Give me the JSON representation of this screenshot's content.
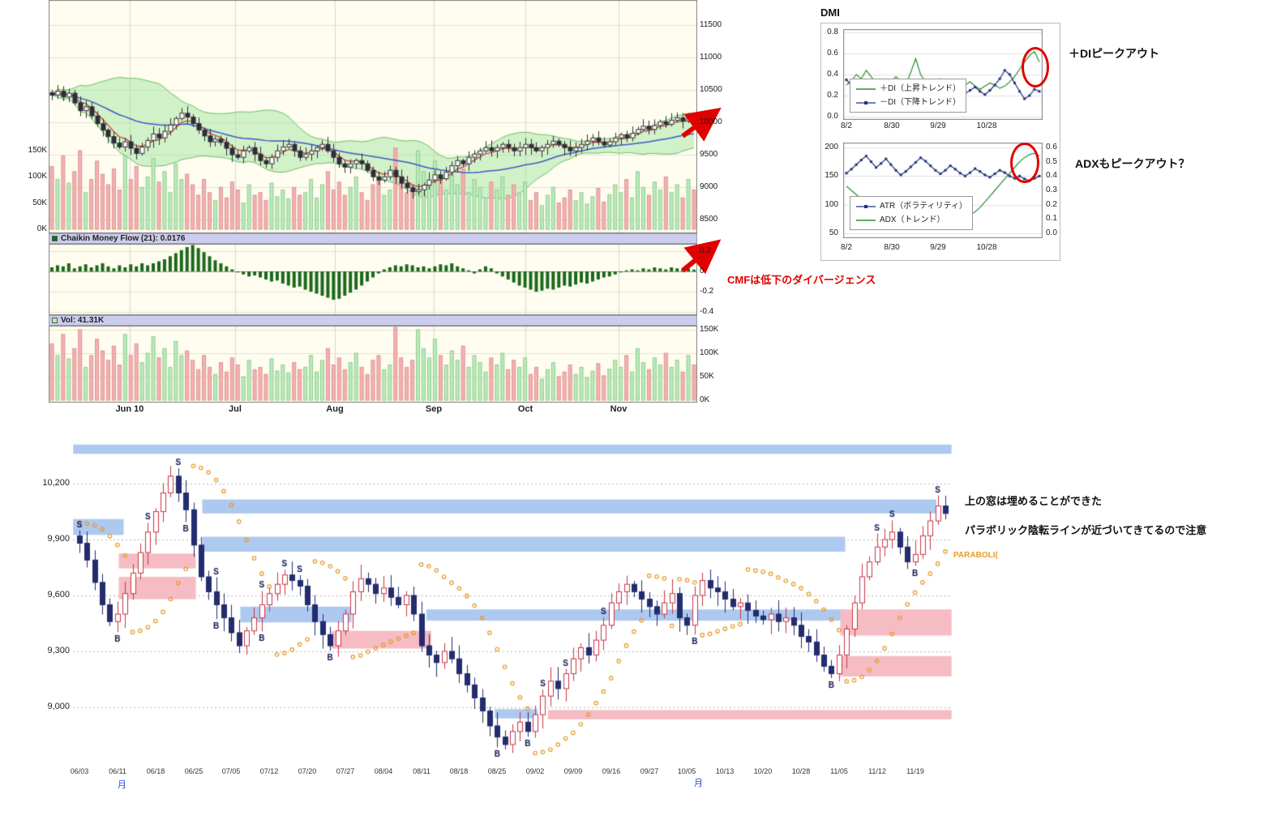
{
  "annotations": {
    "di_peak": "＋DIピークアウト",
    "adx_peak": "ADXもピークアウト？",
    "cmf_divergence": "CMFは低下のダイバージェンス",
    "window_note": "上の窓は埋めることができた",
    "parabolic_note": "パラボリック陰転ラインが近づいてきてるので注意",
    "parabolic_label": "PARABOLI(",
    "month_marker": "月"
  },
  "chart_data": [
    {
      "id": "main_price",
      "type": "candlestick",
      "y_ticks": [
        8500,
        9000,
        9500,
        10000,
        10500,
        11000,
        11500
      ],
      "x_labels": [
        "Jun 10",
        "Jul",
        "Aug",
        "Sep",
        "Oct",
        "Nov"
      ],
      "x_label_x": [
        100,
        230,
        353,
        475,
        588,
        703
      ],
      "volume_ticks": [
        "150K",
        "100K",
        "50K",
        "0K"
      ],
      "volume_tick_values": [
        150,
        100,
        50,
        0
      ],
      "overlays": [
        "bollinger(20,2)",
        "ma_short_red",
        "ma_long_blue",
        "volume"
      ],
      "closes": [
        10420,
        10480,
        10390,
        10450,
        10300,
        10180,
        10240,
        10100,
        9980,
        9880,
        9780,
        9680,
        9620,
        9700,
        9600,
        9520,
        9620,
        9720,
        9820,
        9760,
        9860,
        9960,
        10060,
        10140,
        10080,
        9980,
        9880,
        9790,
        9700,
        9740,
        9690,
        9600,
        9500,
        9460,
        9560,
        9610,
        9510,
        9410,
        9360,
        9460,
        9560,
        9620,
        9660,
        9560,
        9460,
        9510,
        9560,
        9610,
        9660,
        9560,
        9460,
        9360,
        9310,
        9360,
        9410,
        9360,
        9260,
        9160,
        9110,
        9160,
        9260,
        9160,
        9060,
        8990,
        8930,
        8960,
        9030,
        9110,
        9190,
        9130,
        9230,
        9330,
        9410,
        9360,
        9460,
        9510,
        9560,
        9610,
        9560,
        9610,
        9660,
        9610,
        9560,
        9610,
        9660,
        9610,
        9560,
        9610,
        9660,
        9710,
        9660,
        9610,
        9560,
        9610,
        9660,
        9710,
        9760,
        9700,
        9650,
        9700,
        9760,
        9810,
        9760,
        9830,
        9890,
        9940,
        9890,
        9950,
        10010,
        9970,
        10030,
        10070,
        10020,
        10060,
        10010
      ],
      "volumes": [
        120,
        95,
        140,
        88,
        110,
        150,
        70,
        95,
        130,
        105,
        85,
        115,
        75,
        140,
        95,
        120,
        80,
        100,
        135,
        90,
        110,
        70,
        125,
        95,
        105,
        85,
        65,
        95,
        70,
        55,
        80,
        60,
        90,
        75,
        50,
        85,
        65,
        70,
        55,
        88,
        62,
        75,
        58,
        80,
        65,
        70,
        95,
        60,
        85,
        110,
        75,
        90,
        65,
        80,
        100,
        70,
        55,
        85,
        95,
        65,
        75,
        155,
        90,
        70,
        85,
        150,
        110,
        90,
        130,
        95,
        75,
        105,
        85,
        115,
        70,
        95,
        80,
        60,
        90,
        75,
        100,
        65,
        85,
        70,
        90,
        55,
        70,
        45,
        65,
        80,
        50,
        60,
        75,
        55,
        70,
        48,
        62,
        78,
        52,
        66,
        85,
        70,
        95,
        60,
        110,
        80,
        65,
        90,
        75,
        100,
        70,
        85,
        60,
        95,
        75
      ],
      "colors": {
        "up": "#ffffff",
        "down": "#2c2c40",
        "boll_fill": "#99e299",
        "ma_red": "#cc3232",
        "ma_blue": "#3a5bc7",
        "vol_up": "#bce9bc",
        "vol_down": "#f5b1b1",
        "bg": "#fffdf0"
      }
    },
    {
      "id": "cmf",
      "type": "bar",
      "legend": "Chaikin Money Flow (21): 0.0176",
      "y_tick_labels": [
        "0.2",
        "0",
        "-0.2",
        "-0.4"
      ],
      "y_tick_values": [
        0.2,
        0,
        -0.2,
        -0.4
      ],
      "values": [
        0.04,
        0.06,
        0.05,
        0.08,
        0.03,
        0.05,
        0.07,
        0.04,
        0.06,
        0.08,
        0.05,
        0.03,
        0.06,
        0.04,
        0.07,
        0.05,
        0.08,
        0.06,
        0.08,
        0.1,
        0.12,
        0.15,
        0.18,
        0.21,
        0.24,
        0.26,
        0.23,
        0.19,
        0.15,
        0.11,
        0.08,
        0.05,
        0.02,
        -0.01,
        -0.03,
        -0.05,
        -0.04,
        -0.06,
        -0.08,
        -0.1,
        -0.09,
        -0.12,
        -0.14,
        -0.16,
        -0.15,
        -0.18,
        -0.2,
        -0.22,
        -0.24,
        -0.26,
        -0.28,
        -0.27,
        -0.24,
        -0.21,
        -0.18,
        -0.14,
        -0.1,
        -0.06,
        -0.02,
        0.02,
        0.04,
        0.06,
        0.05,
        0.07,
        0.06,
        0.04,
        0.05,
        0.03,
        0.05,
        0.07,
        0.06,
        0.08,
        0.05,
        0.03,
        0.01,
        -0.02,
        0.02,
        0.05,
        0.03,
        -0.02,
        -0.05,
        -0.08,
        -0.11,
        -0.14,
        -0.16,
        -0.18,
        -0.2,
        -0.19,
        -0.17,
        -0.18,
        -0.16,
        -0.14,
        -0.15,
        -0.13,
        -0.11,
        -0.12,
        -0.1,
        -0.08,
        -0.06,
        -0.05,
        -0.03,
        -0.01,
        0.01,
        0.02,
        0.01,
        0.03,
        0.02,
        0.04,
        0.03,
        0.02,
        0.04,
        0.03,
        0.02,
        0.03,
        0.0176
      ],
      "colors": {
        "bar": "#1c691c",
        "bg": "#fffdf0"
      }
    },
    {
      "id": "volume_panel",
      "type": "bar",
      "legend": "Vol: 41.31K",
      "y_ticks": [
        "150K",
        "100K",
        "50K",
        "0K"
      ],
      "y_tick_values": [
        150,
        100,
        50,
        0
      ],
      "colors": {
        "up": "#bce9bc",
        "down": "#f5b1b1",
        "bg": "#fffdf0"
      }
    },
    {
      "id": "dmi_di",
      "type": "line",
      "title": "DMI",
      "y_ticks": [
        "0.8",
        "0.6",
        "0.4",
        "0.2",
        "0.0"
      ],
      "y_tick_values": [
        0.8,
        0.6,
        0.4,
        0.2,
        0
      ],
      "x_ticks": [
        {
          "label": "8/2",
          "f": 0
        },
        {
          "label": "8/30",
          "f": 0.235
        },
        {
          "label": "9/29",
          "f": 0.475
        },
        {
          "label": "10/28",
          "f": 0.725
        }
      ],
      "series": [
        {
          "name": "＋DI（上昇トレンド）",
          "color": "#2e8b2e",
          "markers": false,
          "values": [
            0.3,
            0.34,
            0.4,
            0.36,
            0.44,
            0.38,
            0.32,
            0.35,
            0.3,
            0.33,
            0.38,
            0.34,
            0.3,
            0.42,
            0.55,
            0.4,
            0.33,
            0.29,
            0.33,
            0.36,
            0.32,
            0.28,
            0.3,
            0.27,
            0.3,
            0.33,
            0.29,
            0.26,
            0.29,
            0.32,
            0.3,
            0.27,
            0.29,
            0.33,
            0.38,
            0.45,
            0.52,
            0.58,
            0.62,
            0.52
          ]
        },
        {
          "name": "－DI（下降トレンド）",
          "color": "#22337a",
          "markers": true,
          "values": [
            0.35,
            0.3,
            0.26,
            0.3,
            0.24,
            0.28,
            0.33,
            0.28,
            0.35,
            0.3,
            0.26,
            0.29,
            0.25,
            0.22,
            0.2,
            0.25,
            0.3,
            0.34,
            0.3,
            0.27,
            0.24,
            0.28,
            0.24,
            0.27,
            0.22,
            0.25,
            0.28,
            0.24,
            0.21,
            0.25,
            0.3,
            0.36,
            0.44,
            0.4,
            0.32,
            0.24,
            0.17,
            0.2,
            0.26,
            0.24
          ]
        }
      ]
    },
    {
      "id": "dmi_atr_adx",
      "type": "line",
      "left_ticks": [
        "200",
        "150",
        "100",
        "50"
      ],
      "left_tick_values": [
        200,
        150,
        100,
        50
      ],
      "right_ticks": [
        "0.6",
        "0.5",
        "0.4",
        "0.3",
        "0.2",
        "0.1",
        "0.0"
      ],
      "right_tick_values": [
        0.6,
        0.5,
        0.4,
        0.3,
        0.2,
        0.1,
        0
      ],
      "x_ticks": [
        {
          "label": "8/2",
          "f": 0
        },
        {
          "label": "8/30",
          "f": 0.235
        },
        {
          "label": "9/29",
          "f": 0.475
        },
        {
          "label": "10/28",
          "f": 0.725
        }
      ],
      "series": [
        {
          "name": "ATR（ボラティリティ）",
          "color": "#22337a",
          "axis": "left",
          "markers": true,
          "values": [
            155,
            162,
            170,
            178,
            185,
            175,
            165,
            172,
            180,
            170,
            160,
            152,
            158,
            166,
            174,
            182,
            176,
            168,
            160,
            154,
            160,
            168,
            162,
            155,
            150,
            156,
            163,
            158,
            152,
            148,
            154,
            160,
            156,
            150,
            146,
            150,
            145,
            142,
            146,
            150
          ]
        },
        {
          "name": "ADX（トレンド）",
          "color": "#2e8b2e",
          "axis": "right",
          "markers": false,
          "values": [
            0.33,
            0.3,
            0.27,
            0.24,
            0.21,
            0.19,
            0.17,
            0.15,
            0.13,
            0.12,
            0.1,
            0.09,
            0.08,
            0.09,
            0.1,
            0.09,
            0.08,
            0.09,
            0.11,
            0.13,
            0.12,
            0.11,
            0.1,
            0.12,
            0.14,
            0.13,
            0.15,
            0.18,
            0.22,
            0.26,
            0.3,
            0.34,
            0.38,
            0.42,
            0.46,
            0.5,
            0.53,
            0.55,
            0.56,
            0.54
          ]
        }
      ]
    },
    {
      "id": "daily_candles",
      "type": "candlestick",
      "overlays": [
        "parabolic_sar",
        "gap_windows",
        "buy_sell_signals"
      ],
      "y_ticks": [
        {
          "label": "10,200",
          "value": 10200
        },
        {
          "label": "9,900",
          "value": 9900
        },
        {
          "label": "9,600",
          "value": 9600
        },
        {
          "label": "9,300",
          "value": 9300
        },
        {
          "label": "9,000",
          "value": 9000
        }
      ],
      "x_ticks": [
        "06/03",
        "06/11",
        "06/18",
        "06/25",
        "07/05",
        "07/12",
        "07/20",
        "07/27",
        "08/04",
        "08/11",
        "08/18",
        "08/25",
        "09/02",
        "09/09",
        "09/16",
        "09/27",
        "10/05",
        "10/13",
        "10/20",
        "10/28",
        "11/05",
        "11/12",
        "11/19"
      ],
      "closes": [
        9880,
        9790,
        9670,
        9550,
        9460,
        9500,
        9610,
        9720,
        9830,
        9940,
        10050,
        10150,
        10240,
        10150,
        10060,
        9870,
        9700,
        9620,
        9550,
        9480,
        9400,
        9330,
        9410,
        9480,
        9550,
        9610,
        9660,
        9710,
        9680,
        9650,
        9550,
        9460,
        9390,
        9330,
        9410,
        9500,
        9620,
        9690,
        9660,
        9610,
        9640,
        9590,
        9550,
        9600,
        9500,
        9330,
        9280,
        9240,
        9300,
        9260,
        9180,
        9120,
        9050,
        8980,
        8900,
        8840,
        8800,
        8870,
        8920,
        8870,
        8960,
        9060,
        9140,
        9100,
        9180,
        9260,
        9320,
        9280,
        9360,
        9440,
        9560,
        9620,
        9660,
        9620,
        9580,
        9540,
        9500,
        9560,
        9610,
        9480,
        9440,
        9600,
        9680,
        9640,
        9620,
        9580,
        9540,
        9560,
        9520,
        9490,
        9470,
        9500,
        9460,
        9480,
        9440,
        9380,
        9350,
        9280,
        9220,
        9180,
        9280,
        9420,
        9560,
        9700,
        9780,
        9860,
        9900,
        9940,
        9860,
        9780,
        9820,
        9920,
        10000,
        10080,
        10040
      ],
      "windows": [
        {
          "d0": -0.5,
          "d1": 114.5,
          "p0": 10360,
          "p1": 10410,
          "c": "blue"
        },
        {
          "d0": 16.5,
          "d1": 112.5,
          "p0": 10040,
          "p1": 10115,
          "c": "blue"
        },
        {
          "d0": 16.5,
          "d1": 100.5,
          "p0": 9835,
          "p1": 9915,
          "c": "blue"
        },
        {
          "d0": -0.5,
          "d1": 5.5,
          "p0": 9925,
          "p1": 10010,
          "c": "blue"
        },
        {
          "d0": 5.5,
          "d1": 15,
          "p0": 9745,
          "p1": 9825,
          "c": "pink"
        },
        {
          "d0": 5.5,
          "d1": 15,
          "p0": 9580,
          "p1": 9700,
          "c": "pink"
        },
        {
          "d0": 21.5,
          "d1": 35.5,
          "p0": 9455,
          "p1": 9540,
          "c": "blue"
        },
        {
          "d0": 33.5,
          "d1": 46,
          "p0": 9315,
          "p1": 9410,
          "c": "pink"
        },
        {
          "d0": 46,
          "d1": 100.5,
          "p0": 9465,
          "p1": 9525,
          "c": "blue"
        },
        {
          "d0": 100.5,
          "d1": 114.5,
          "p0": 9385,
          "p1": 9525,
          "c": "pink"
        },
        {
          "d0": 100.5,
          "d1": 114.5,
          "p0": 9165,
          "p1": 9275,
          "c": "pink"
        },
        {
          "d0": 62,
          "d1": 114.5,
          "p0": 8935,
          "p1": 8985,
          "c": "pink"
        },
        {
          "d0": 55,
          "d1": 60,
          "p0": 8940,
          "p1": 8990,
          "c": "blue"
        }
      ],
      "signals": [
        {
          "d": 0,
          "t": "S"
        },
        {
          "d": 5,
          "t": "B"
        },
        {
          "d": 9,
          "t": "S"
        },
        {
          "d": 13,
          "t": "S"
        },
        {
          "d": 14,
          "t": "B"
        },
        {
          "d": 18,
          "t": "S"
        },
        {
          "d": 18,
          "t": "B"
        },
        {
          "d": 24,
          "t": "S"
        },
        {
          "d": 24,
          "t": "B"
        },
        {
          "d": 27,
          "t": "S"
        },
        {
          "d": 29,
          "t": "S"
        },
        {
          "d": 33,
          "t": "B"
        },
        {
          "d": 55,
          "t": "B"
        },
        {
          "d": 59,
          "t": "B"
        },
        {
          "d": 61,
          "t": "S"
        },
        {
          "d": 64,
          "t": "S"
        },
        {
          "d": 69,
          "t": "S"
        },
        {
          "d": 81,
          "t": "B"
        },
        {
          "d": 99,
          "t": "B"
        },
        {
          "d": 105,
          "t": "S"
        },
        {
          "d": 107,
          "t": "S"
        },
        {
          "d": 110,
          "t": "B"
        },
        {
          "d": 113,
          "t": "S"
        }
      ],
      "colors": {
        "up_border": "#c83646",
        "down_fill": "#232d6e",
        "window_blue": "#adc9ef",
        "window_pink": "#f6bcc4",
        "sar": "#e89a28",
        "signal": "#141452"
      }
    }
  ]
}
